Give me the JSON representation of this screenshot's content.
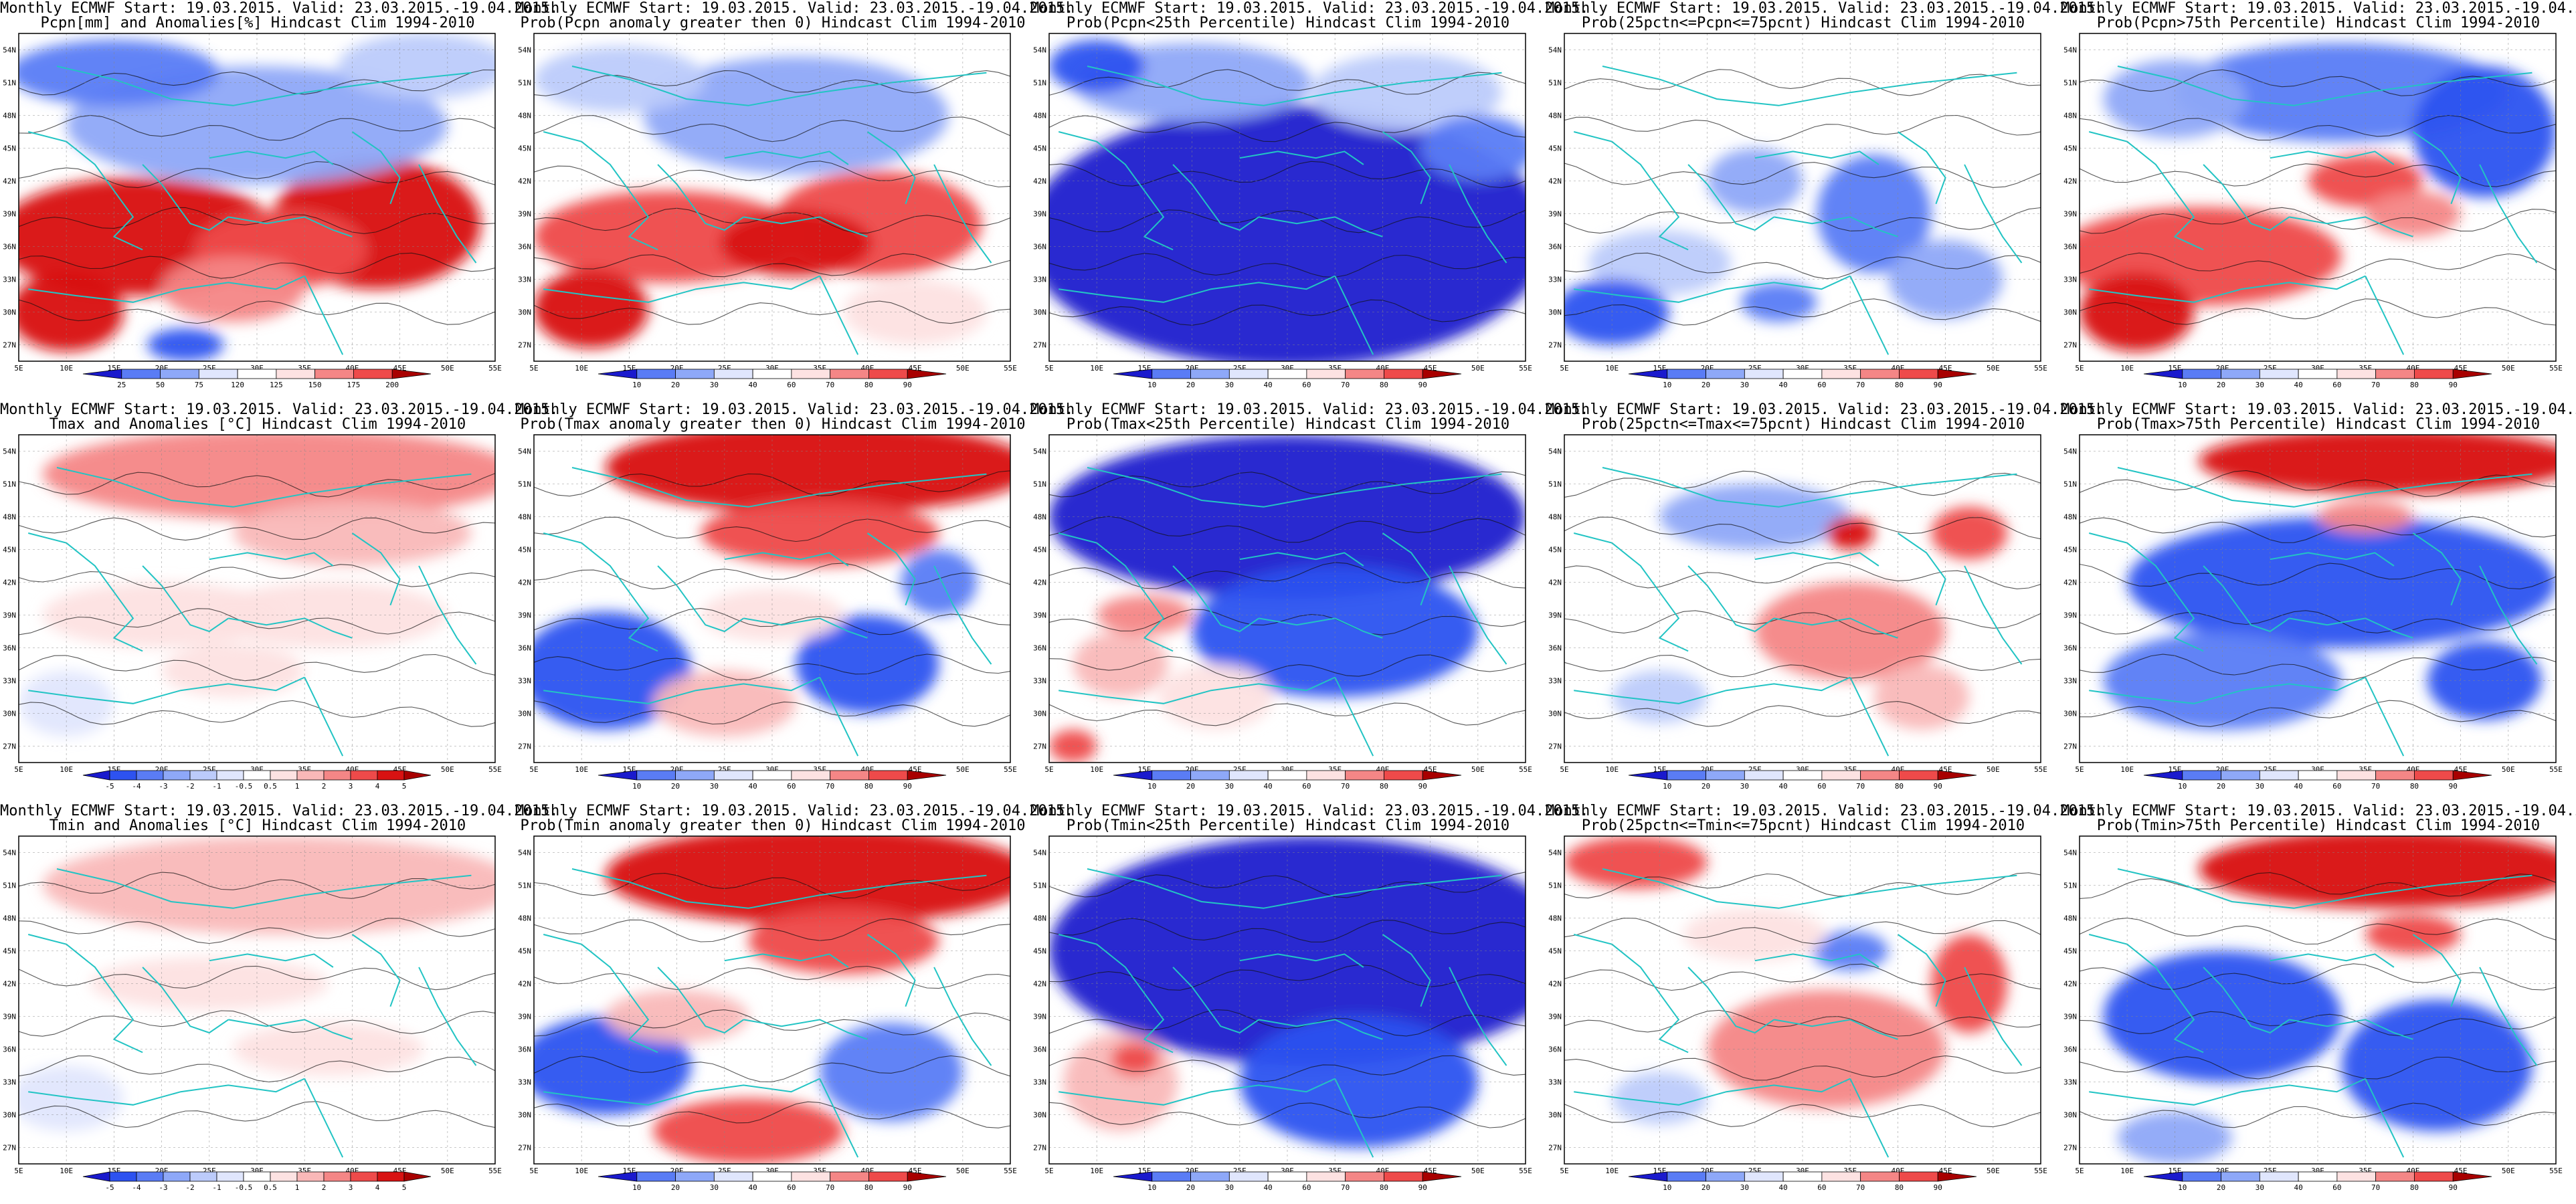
{
  "common_title_prefix": "Monthly ECMWF Start: 19.03.2015. Valid: 23.03.2015.-19.04.2015.",
  "lat_labels": [
    "54N",
    "51N",
    "48N",
    "45N",
    "42N",
    "39N",
    "36N",
    "33N",
    "30N",
    "27N"
  ],
  "lon_labels": [
    "5E",
    "10E",
    "15E",
    "20E",
    "25E",
    "30E",
    "35E",
    "40E",
    "45E",
    "50E",
    "55E"
  ],
  "colors": {
    "coast": "#22c4c4",
    "contour": "#111111",
    "grid": "#888888",
    "blue_scale": [
      "#1a1acd",
      "#2d52f0",
      "#5a7cf5",
      "#8ea8f8",
      "#bccbfb",
      "#e0e6fd"
    ],
    "red_scale": [
      "#fde2e2",
      "#f9b8b8",
      "#f48686",
      "#ee4a4a",
      "#d81212",
      "#a80000"
    ],
    "neutral": "#ffffff"
  },
  "panels": [
    {
      "row": 0,
      "col": 0,
      "title": "Pcpn[mm] and Anomalies[%] Hindcast Clim 1994-2010",
      "pattern": "pcpn_anom",
      "colorbar": [
        "25",
        "50",
        "75",
        "120",
        "125",
        "150",
        "175",
        "200"
      ]
    },
    {
      "row": 0,
      "col": 1,
      "title": "Prob(Pcpn anomaly greater then 0) Hindcast Clim 1994-2010",
      "pattern": "pcpn_prob",
      "colorbar": [
        "10",
        "20",
        "30",
        "40",
        "60",
        "70",
        "80",
        "90"
      ]
    },
    {
      "row": 0,
      "col": 2,
      "title": "Prob(Pcpn<25th Percentile) Hindcast Clim 1994-2010",
      "pattern": "pcpn_p25",
      "colorbar": [
        "10",
        "20",
        "30",
        "40",
        "60",
        "70",
        "80",
        "90"
      ]
    },
    {
      "row": 0,
      "col": 3,
      "title": "Prob(25pctn<=Pcpn<=75pcnt) Hindcast Clim 1994-2010",
      "pattern": "pcpn_mid",
      "colorbar": [
        "10",
        "20",
        "30",
        "40",
        "60",
        "70",
        "80",
        "90"
      ]
    },
    {
      "row": 0,
      "col": 4,
      "title": "Prob(Pcpn>75th Percentile) Hindcast Clim 1994-2010",
      "pattern": "pcpn_p75",
      "colorbar": [
        "10",
        "20",
        "30",
        "40",
        "60",
        "70",
        "80",
        "90"
      ]
    },
    {
      "row": 1,
      "col": 0,
      "title": "Tmax and Anomalies [°C] Hindcast Clim 1994-2010",
      "pattern": "tmax_anom",
      "colorbar": [
        "-5",
        "-4",
        "-3",
        "-2",
        "-1",
        "-0.5",
        "0.5",
        "1",
        "2",
        "3",
        "4",
        "5"
      ]
    },
    {
      "row": 1,
      "col": 1,
      "title": "Prob(Tmax anomaly greater then 0) Hindcast Clim 1994-2010",
      "pattern": "tmax_prob",
      "colorbar": [
        "10",
        "20",
        "30",
        "40",
        "60",
        "70",
        "80",
        "90"
      ]
    },
    {
      "row": 1,
      "col": 2,
      "title": "Prob(Tmax<25th Percentile) Hindcast Clim 1994-2010",
      "pattern": "tmax_p25",
      "colorbar": [
        "10",
        "20",
        "30",
        "40",
        "60",
        "70",
        "80",
        "90"
      ]
    },
    {
      "row": 1,
      "col": 3,
      "title": "Prob(25pctn<=Tmax<=75pcnt) Hindcast Clim 1994-2010",
      "pattern": "tmax_mid",
      "colorbar": [
        "10",
        "20",
        "30",
        "40",
        "60",
        "70",
        "80",
        "90"
      ]
    },
    {
      "row": 1,
      "col": 4,
      "title": "Prob(Tmax>75th Percentile) Hindcast Clim 1994-2010",
      "pattern": "tmax_p75",
      "colorbar": [
        "10",
        "20",
        "30",
        "40",
        "60",
        "70",
        "80",
        "90"
      ]
    },
    {
      "row": 2,
      "col": 0,
      "title": "Tmin and Anomalies [°C] Hindcast Clim 1994-2010",
      "pattern": "tmin_anom",
      "colorbar": [
        "-5",
        "-4",
        "-3",
        "-2",
        "-1",
        "-0.5",
        "0.5",
        "1",
        "2",
        "3",
        "4",
        "5"
      ]
    },
    {
      "row": 2,
      "col": 1,
      "title": "Prob(Tmin anomaly greater then 0) Hindcast Clim 1994-2010",
      "pattern": "tmin_prob",
      "colorbar": [
        "10",
        "20",
        "30",
        "40",
        "60",
        "70",
        "80",
        "90"
      ]
    },
    {
      "row": 2,
      "col": 2,
      "title": "Prob(Tmin<25th Percentile) Hindcast Clim 1994-2010",
      "pattern": "tmin_p25",
      "colorbar": [
        "10",
        "20",
        "30",
        "40",
        "60",
        "70",
        "80",
        "90"
      ]
    },
    {
      "row": 2,
      "col": 3,
      "title": "Prob(25pctn<=Tmin<=75pcnt) Hindcast Clim 1994-2010",
      "pattern": "tmin_mid",
      "colorbar": [
        "10",
        "20",
        "30",
        "40",
        "60",
        "70",
        "80",
        "90"
      ]
    },
    {
      "row": 2,
      "col": 4,
      "title": "Prob(Tmin>75th Percentile) Hindcast Clim 1994-2010",
      "pattern": "tmin_p75",
      "colorbar": [
        "10",
        "20",
        "30",
        "40",
        "60",
        "70",
        "80",
        "90"
      ]
    }
  ]
}
